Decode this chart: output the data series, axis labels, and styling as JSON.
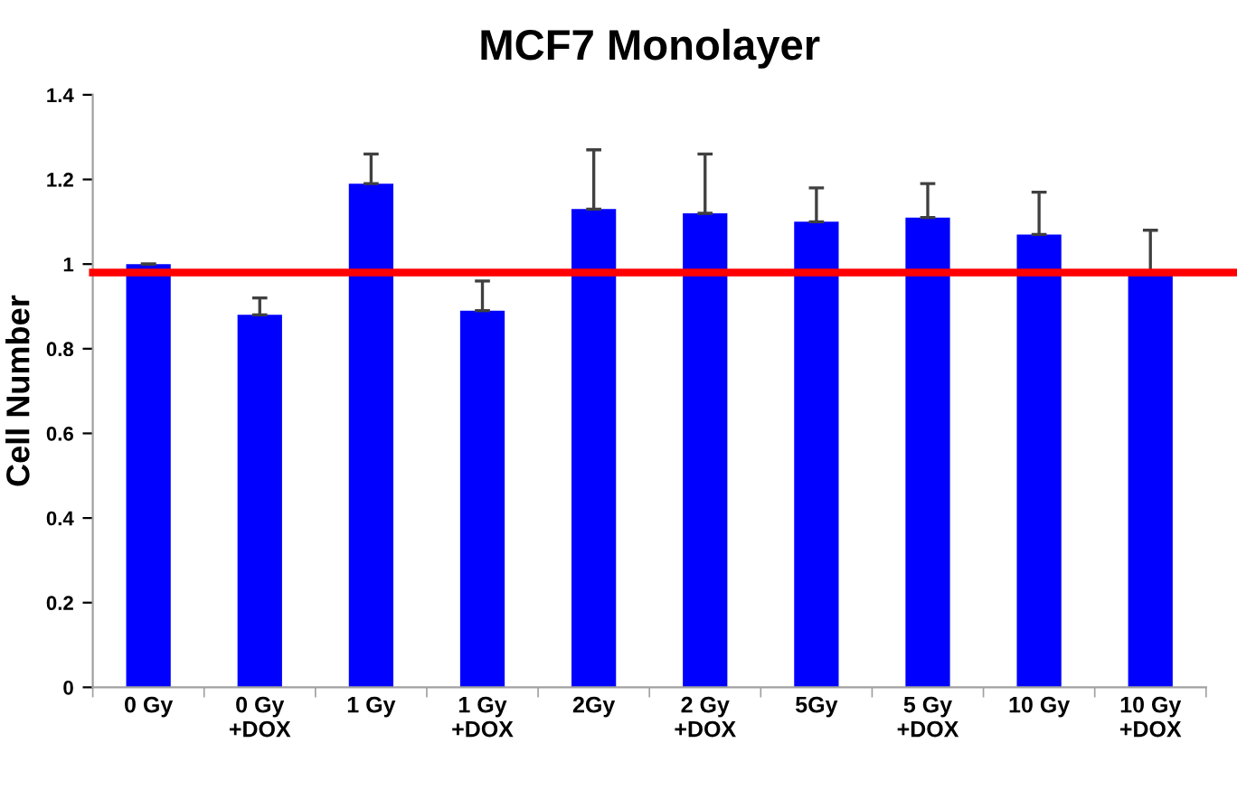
{
  "chart_data": {
    "type": "bar",
    "title": "MCF7 Monolayer",
    "ylabel": "Cell Number",
    "categories": [
      "0 Gy",
      "0 Gy\n+DOX",
      "1 Gy",
      "1 Gy\n+DOX",
      "2Gy",
      "2 Gy\n+DOX",
      "5Gy",
      "5 Gy\n+DOX",
      "10 Gy",
      "10 Gy\n+DOX"
    ],
    "values": [
      1.0,
      0.88,
      1.19,
      0.89,
      1.13,
      1.12,
      1.1,
      1.11,
      1.07,
      0.98
    ],
    "errors": [
      [
        1.0,
        1.0
      ],
      [
        0.88,
        0.92
      ],
      [
        1.19,
        1.26
      ],
      [
        0.89,
        0.96
      ],
      [
        1.13,
        1.27
      ],
      [
        1.12,
        1.26
      ],
      [
        1.1,
        1.18
      ],
      [
        1.11,
        1.19
      ],
      [
        1.07,
        1.17
      ],
      [
        0.98,
        1.08
      ]
    ],
    "color": "#0000ff",
    "ylim": [
      0,
      1.4
    ],
    "yticks": [
      0,
      0.2,
      0.4,
      0.6,
      0.8,
      1,
      1.2,
      1.4
    ],
    "ref_lines": [
      {
        "axis": "y",
        "value": 0.98,
        "label": null,
        "color": "#ff0000"
      }
    ],
    "grid": false,
    "legend": false
  }
}
